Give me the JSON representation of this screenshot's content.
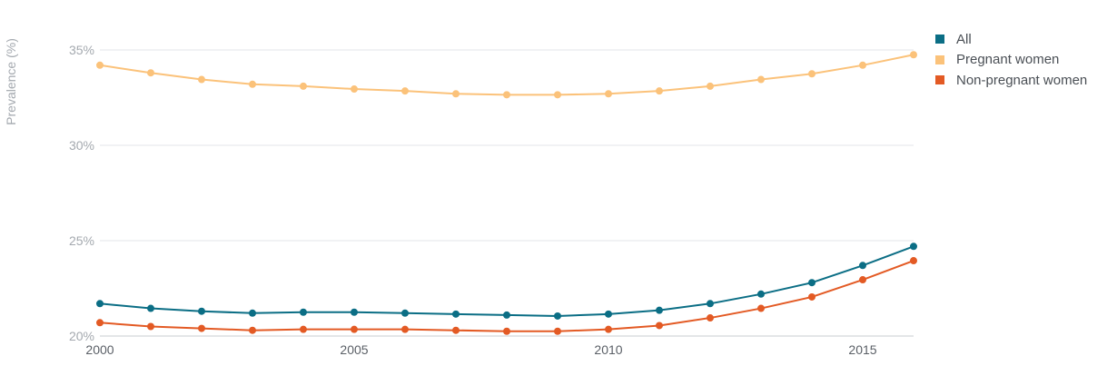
{
  "chart_data": {
    "type": "line",
    "ylabel": "Prevalence (%)",
    "xlabel": "",
    "x": [
      2000,
      2001,
      2002,
      2003,
      2004,
      2005,
      2006,
      2007,
      2008,
      2009,
      2010,
      2011,
      2012,
      2013,
      2014,
      2015,
      2016
    ],
    "xlim": [
      2000,
      2016
    ],
    "ylim": [
      20,
      36
    ],
    "x_ticks": [
      2000,
      2005,
      2010,
      2015
    ],
    "x_tick_labels": [
      "2000",
      "2005",
      "2010",
      "2015"
    ],
    "y_ticks": [
      20,
      25,
      30,
      35
    ],
    "y_tick_labels": [
      "20%",
      "25%",
      "30%",
      "35%"
    ],
    "grid": true,
    "legend_position": "top-right",
    "series": [
      {
        "name": "All",
        "color": "#0b6e85",
        "values": [
          21.7,
          21.45,
          21.3,
          21.2,
          21.25,
          21.25,
          21.2,
          21.15,
          21.1,
          21.05,
          21.15,
          21.35,
          21.7,
          22.2,
          22.8,
          23.7,
          24.7
        ]
      },
      {
        "name": "Pregnant women",
        "color": "#fbc27a",
        "values": [
          34.2,
          33.8,
          33.45,
          33.2,
          33.1,
          32.95,
          32.85,
          32.7,
          32.65,
          32.65,
          32.7,
          32.85,
          33.1,
          33.45,
          33.75,
          34.2,
          34.75
        ]
      },
      {
        "name": "Non-pregnant women",
        "color": "#e35a24",
        "values": [
          20.7,
          20.5,
          20.4,
          20.3,
          20.35,
          20.35,
          20.35,
          20.3,
          20.25,
          20.25,
          20.35,
          20.55,
          20.95,
          21.45,
          22.05,
          22.95,
          23.95
        ]
      }
    ]
  }
}
